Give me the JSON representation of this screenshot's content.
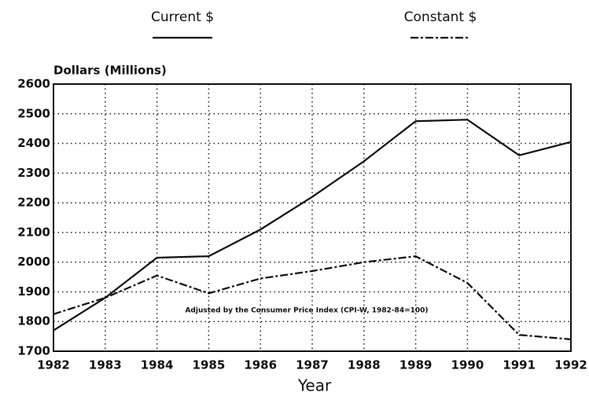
{
  "chart_data": {
    "type": "line",
    "y_label": "Dollars (Millions)",
    "x_label": "Year",
    "annotation": "Adjusted by the Consumer Price Index (CPI-W, 1982-84=100)",
    "x": [
      1982,
      1983,
      1984,
      1985,
      1986,
      1987,
      1988,
      1989,
      1990,
      1991,
      1992
    ],
    "series": [
      {
        "name": "Current $",
        "color": "#111111",
        "dash": "solid",
        "values": [
          1770,
          1880,
          2015,
          2020,
          2110,
          2220,
          2340,
          2475,
          2480,
          2360,
          2405
        ]
      },
      {
        "name": "Constant $",
        "color": "#111111",
        "dash": "dashed",
        "values": [
          1825,
          1880,
          1955,
          1895,
          1945,
          1970,
          2000,
          2020,
          1930,
          1755,
          1740
        ]
      }
    ],
    "xlim": [
      1982,
      1992
    ],
    "xticks": [
      1982,
      1983,
      1984,
      1985,
      1986,
      1987,
      1988,
      1989,
      1990,
      1991,
      1992
    ],
    "ylim": [
      1700,
      2600
    ],
    "yticks": [
      1700,
      1800,
      1900,
      2000,
      2100,
      2200,
      2300,
      2400,
      2500,
      2600
    ],
    "grid": true,
    "legend": "top"
  }
}
